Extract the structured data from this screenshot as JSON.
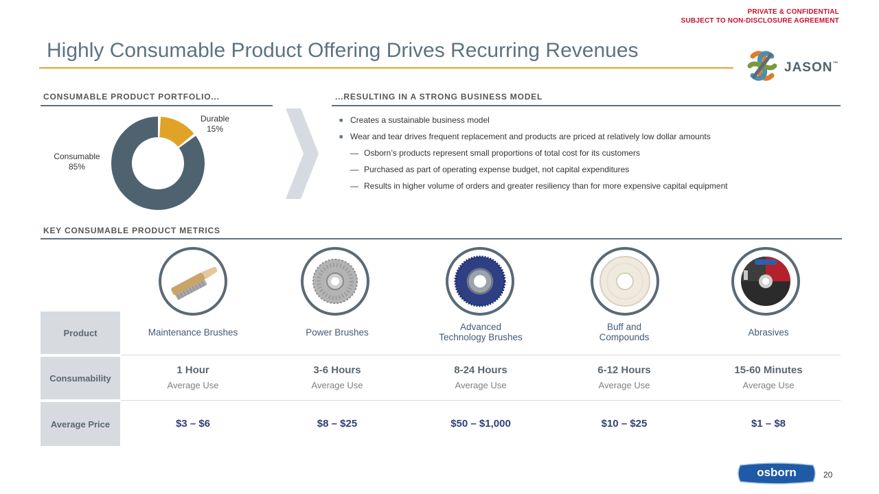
{
  "header": {
    "confidential_line1": "PRIVATE & CONFIDENTIAL",
    "confidential_line2": "SUBJECT TO NON-DISCLOSURE  AGREEMENT",
    "title": "Highly Consumable Product Offering Drives Recurring Revenues",
    "logo_text": "JASON",
    "logo_tm": "™"
  },
  "portfolio": {
    "heading": "CONSUMABLE  PRODUCT  PORTFOLIO...",
    "durable_label": "Durable",
    "durable_pct": "15%",
    "consumable_label": "Consumable",
    "consumable_pct": "85%"
  },
  "chart_data": {
    "type": "pie",
    "categories": [
      "Durable",
      "Consumable"
    ],
    "values": [
      15,
      85
    ],
    "colors": [
      "#e0a327",
      "#4f6270"
    ],
    "title": ""
  },
  "business_model": {
    "heading": "...RESULTING  IN A STRONG  BUSINESS MODEL",
    "bullets": [
      "Creates a sustainable business model",
      "Wear and tear drives frequent replacement and products are priced at relatively low dollar amounts"
    ],
    "sub_mark": "—",
    "sub_bullets": [
      "Osborn’s products represent small proportions of total cost for its customers",
      "Purchased as part of operating expense budget, not capital expenditures",
      "Results in higher volume  of orders and greater resiliency than for more expensive capital equipment"
    ]
  },
  "metrics": {
    "heading": "KEY CONSUMABLE  PRODUCT  METRICS",
    "row_labels": {
      "product": "Product",
      "consumability": "Consumability",
      "price": "Average Price"
    },
    "products": [
      {
        "name": "Maintenance Brushes",
        "name2": "",
        "hours": "1 Hour",
        "avg": "Average Use",
        "price": "$3 – $6",
        "icon": "wire-hand-brush-icon"
      },
      {
        "name": "Power Brushes",
        "name2": "",
        "hours": "3-6 Hours",
        "avg": "Average Use",
        "price": "$8 – $25",
        "icon": "wire-wheel-brush-icon"
      },
      {
        "name": "Advanced",
        "name2": "Technology Brushes",
        "hours": "8-24 Hours",
        "avg": "Average Use",
        "price": "$50 – $1,000",
        "icon": "nylon-disc-brush-icon"
      },
      {
        "name": "Buff and",
        "name2": "Compounds",
        "hours": "6-12 Hours",
        "avg": "Average Use",
        "price": "$10 – $25",
        "icon": "buffing-wheel-icon"
      },
      {
        "name": "Abrasives",
        "name2": "",
        "hours": "15-60 Minutes",
        "avg": "Average Use",
        "price": "$1 – $8",
        "icon": "abrasive-disc-icon"
      }
    ]
  },
  "footer": {
    "osborn_logo": "osborn",
    "page_number": "20"
  }
}
